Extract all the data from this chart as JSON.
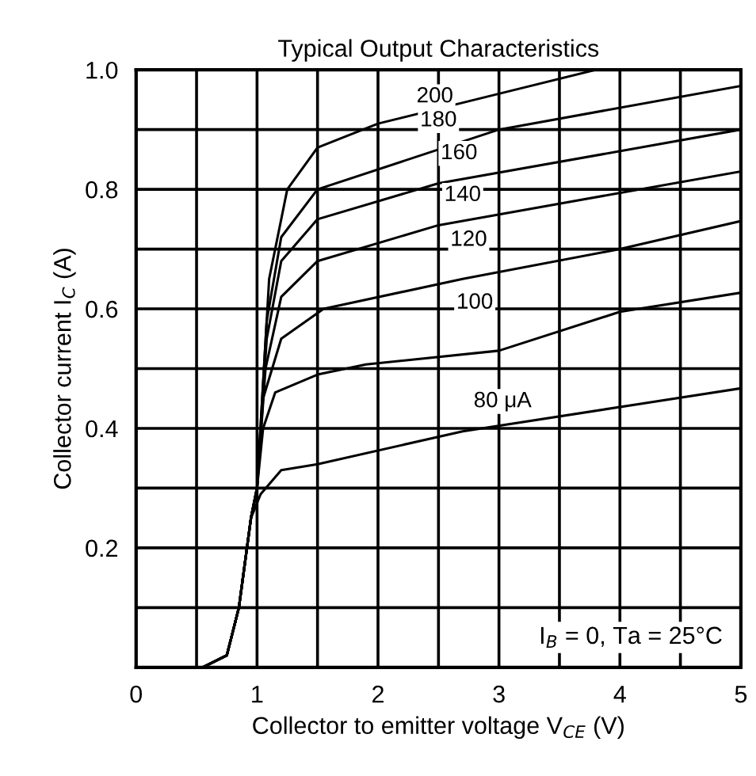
{
  "chart_data": {
    "type": "line",
    "title": "Typical Output Characteristics",
    "xlabel": "Collector to emitter voltage V$_{CE}$ (V)",
    "ylabel": "Collector current I$_{C}$ (A)",
    "xlim": [
      0,
      5
    ],
    "ylim": [
      0,
      1.0
    ],
    "xticks": [
      0,
      {
        "value": 0.5,
        "label": null
      },
      1,
      {
        "value": 1.5,
        "label": null
      },
      2,
      {
        "value": 2.5,
        "label": null
      },
      3,
      {
        "value": 3.5,
        "label": null
      },
      4,
      {
        "value": 4.5,
        "label": null
      },
      5
    ],
    "yticks": [
      {
        "value": 0,
        "label": null
      },
      {
        "value": 0.1,
        "label": null
      },
      0.2,
      {
        "value": 0.3,
        "label": null
      },
      0.4,
      {
        "value": 0.5,
        "label": null
      },
      0.6,
      {
        "value": 0.7,
        "label": null
      },
      0.8,
      {
        "value": 0.9,
        "label": null
      },
      {
        "value": 1.0,
        "label": "1.0"
      }
    ],
    "grid": true,
    "marker": "none",
    "line_style": "solid",
    "series": [
      {
        "color": "#000000",
        "x": [
          0.55,
          0.75,
          0.85,
          0.95,
          1.03,
          1.2,
          1.5,
          2.7,
          5.0
        ],
        "values": [
          0,
          0.02,
          0.1,
          0.25,
          0.29,
          0.33,
          0.34,
          0.395,
          0.467
        ]
      },
      {
        "color": "#000000",
        "x": [
          0.55,
          0.75,
          0.85,
          0.95,
          1.0,
          1.05,
          1.15,
          1.5,
          1.9,
          3.0,
          4.0,
          5.0
        ],
        "values": [
          0,
          0.02,
          0.1,
          0.25,
          0.3,
          0.4,
          0.46,
          0.49,
          0.507,
          0.53,
          0.595,
          0.627
        ]
      },
      {
        "color": "#000000",
        "x": [
          0.55,
          0.75,
          0.85,
          0.95,
          1.0,
          1.05,
          1.2,
          1.55,
          2.7,
          4.0,
          5.0
        ],
        "values": [
          0,
          0.02,
          0.1,
          0.25,
          0.3,
          0.45,
          0.55,
          0.6,
          0.65,
          0.7,
          0.747
        ]
      },
      {
        "color": "#000000",
        "x": [
          0.55,
          0.75,
          0.85,
          0.95,
          1.0,
          1.07,
          1.2,
          1.5,
          2.5,
          5.0
        ],
        "values": [
          0,
          0.02,
          0.1,
          0.25,
          0.3,
          0.5,
          0.62,
          0.68,
          0.74,
          0.83
        ]
      },
      {
        "color": "#000000",
        "x": [
          0.55,
          0.75,
          0.85,
          0.95,
          1.0,
          1.08,
          1.2,
          1.5,
          2.5,
          5.0
        ],
        "values": [
          0,
          0.02,
          0.1,
          0.25,
          0.3,
          0.55,
          0.68,
          0.75,
          0.81,
          0.9
        ]
      },
      {
        "color": "#000000",
        "x": [
          0.55,
          0.75,
          0.85,
          0.95,
          1.0,
          1.08,
          1.2,
          1.5,
          3.0,
          5.0
        ],
        "values": [
          0,
          0.02,
          0.1,
          0.25,
          0.3,
          0.58,
          0.72,
          0.8,
          0.9,
          0.973
        ]
      },
      {
        "color": "#000000",
        "x": [
          0.55,
          0.75,
          0.85,
          0.95,
          1.0,
          1.1,
          1.25,
          1.5,
          2.0,
          3.0,
          3.8
        ],
        "values": [
          0,
          0.02,
          0.1,
          0.25,
          0.3,
          0.65,
          0.8,
          0.87,
          0.91,
          0.96,
          1.0
        ]
      }
    ],
    "annotations": [
      {
        "text": "200",
        "x": 2.47,
        "y": 0.955
      },
      {
        "text": "180",
        "x": 2.5,
        "y": 0.915
      },
      {
        "text": "160",
        "x": 2.67,
        "y": 0.86
      },
      {
        "text": "140",
        "x": 2.7,
        "y": 0.79
      },
      {
        "text": "120",
        "x": 2.75,
        "y": 0.715
      },
      {
        "text": "100",
        "x": 2.8,
        "y": 0.61
      },
      {
        "text": "80 μA",
        "x": 3.03,
        "y": 0.445
      },
      "I$_{B}$ = 0, Ta = 25°C"
    ]
  }
}
